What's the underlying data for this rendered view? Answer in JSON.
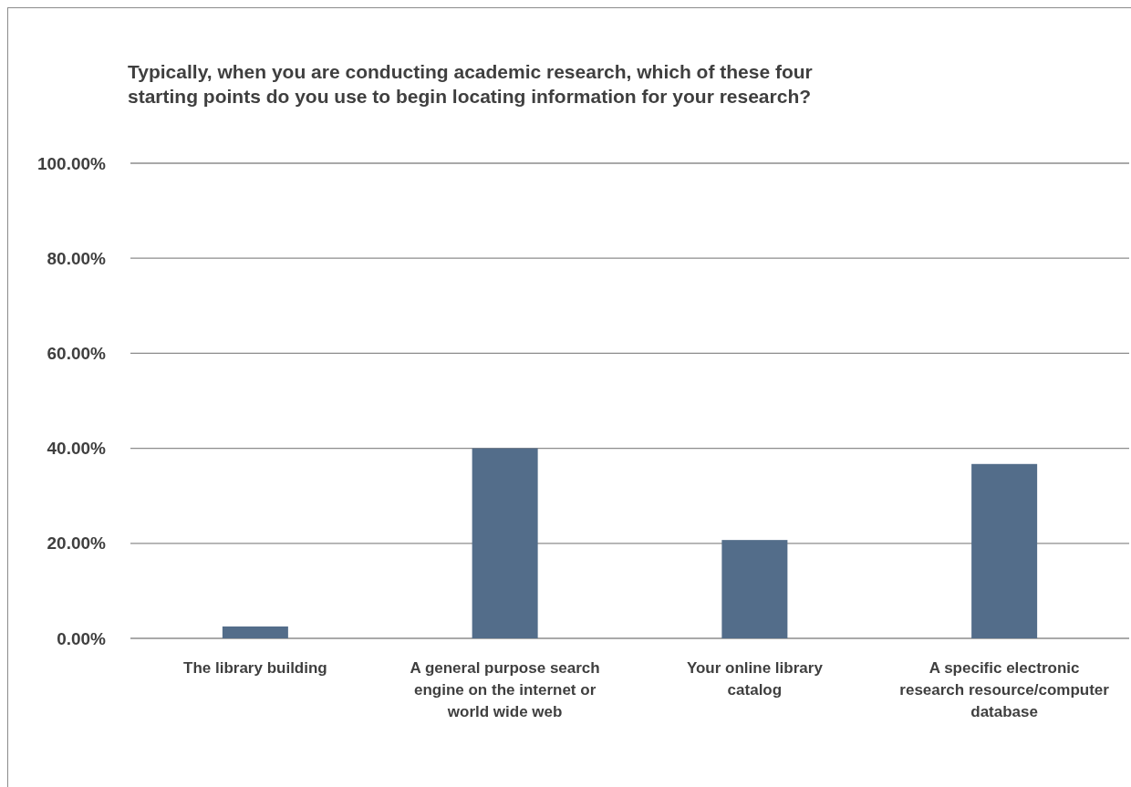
{
  "chart_data": {
    "type": "bar",
    "title": "Typically, when you are conducting academic research, which of these four starting points do you use to begin locating information for your research?",
    "categories": [
      "The library building",
      "A general purpose search engine on the internet or world wide web",
      "Your online library catalog",
      "A specific electronic research resource/computer database"
    ],
    "values": [
      2.5,
      40.0,
      20.7,
      36.7
    ],
    "color": "#536d8a",
    "ylim": [
      0,
      100
    ],
    "yticks": [
      {
        "value": 0,
        "label": "0.00%"
      },
      {
        "value": 20,
        "label": "20.00%"
      },
      {
        "value": 40,
        "label": "40.00%"
      },
      {
        "value": 60,
        "label": "60.00%"
      },
      {
        "value": 80,
        "label": "80.00%"
      },
      {
        "value": 100,
        "label": "100.00%"
      }
    ],
    "grid": "y"
  }
}
